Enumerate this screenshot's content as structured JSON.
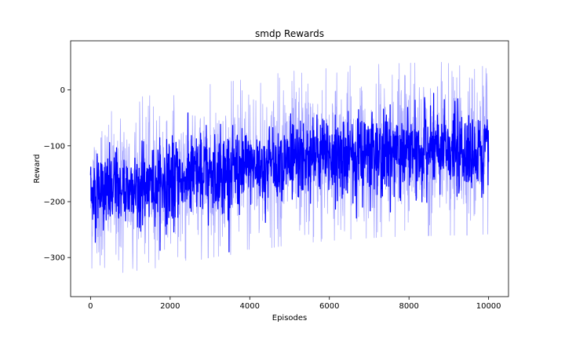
{
  "chart_data": {
    "type": "line",
    "title": "smdp Rewards",
    "xlabel": "Episodes",
    "ylabel": "Reward",
    "xlim": [
      -500,
      10500
    ],
    "ylim": [
      -370,
      88
    ],
    "grid": false,
    "x_ticks": [
      0,
      2000,
      4000,
      6000,
      8000,
      10000
    ],
    "y_ticks": [
      -300,
      -200,
      -100,
      0
    ],
    "series": [
      {
        "color": "#0000ff",
        "light_color": "#aaaaff",
        "x": [
          0,
          500,
          1000,
          1500,
          2000,
          2500,
          3000,
          3500,
          4000,
          4500,
          5000,
          5500,
          6000,
          6500,
          7000,
          7500,
          8000,
          8500,
          9000,
          9500,
          10000
        ],
        "mean": [
          -185,
          -180,
          -175,
          -170,
          -165,
          -158,
          -150,
          -145,
          -140,
          -133,
          -127,
          -123,
          -120,
          -117,
          -115,
          -113,
          -112,
          -111,
          -110,
          -110,
          -108
        ],
        "spread": [
          45,
          46,
          46,
          47,
          47,
          48,
          48,
          48,
          48,
          48,
          48,
          48,
          48,
          48,
          48,
          48,
          48,
          48,
          48,
          48,
          48
        ],
        "band_lower": [
          -310,
          -305,
          -300,
          -295,
          -290,
          -283,
          -275,
          -270,
          -265,
          -258,
          -252,
          -248,
          -245,
          -242,
          -240,
          -238,
          -237,
          -236,
          -235,
          -235,
          -233
        ],
        "band_upper": [
          -60,
          -55,
          -50,
          -45,
          -40,
          -33,
          -25,
          -20,
          -15,
          -8,
          -2,
          2,
          5,
          8,
          10,
          12,
          13,
          14,
          15,
          15,
          17
        ]
      }
    ]
  }
}
